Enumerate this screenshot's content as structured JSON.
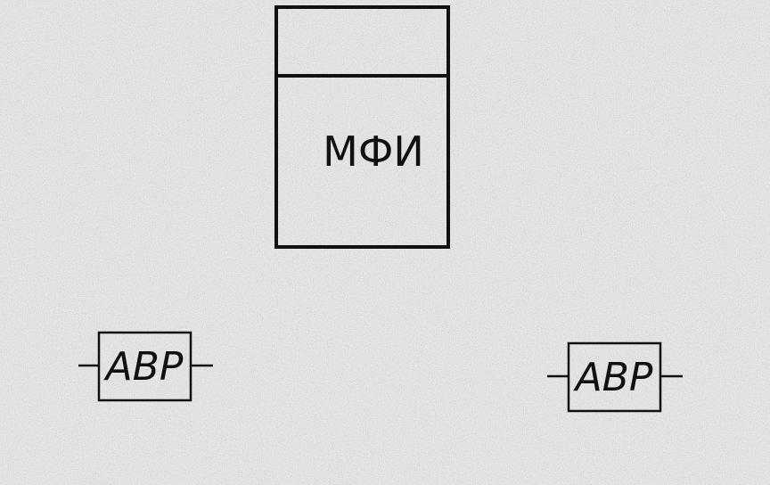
{
  "diagram": {
    "main_block": {
      "label": "МФИ"
    },
    "blocks": [
      {
        "label": "ABP"
      },
      {
        "label": "ABP"
      }
    ]
  }
}
